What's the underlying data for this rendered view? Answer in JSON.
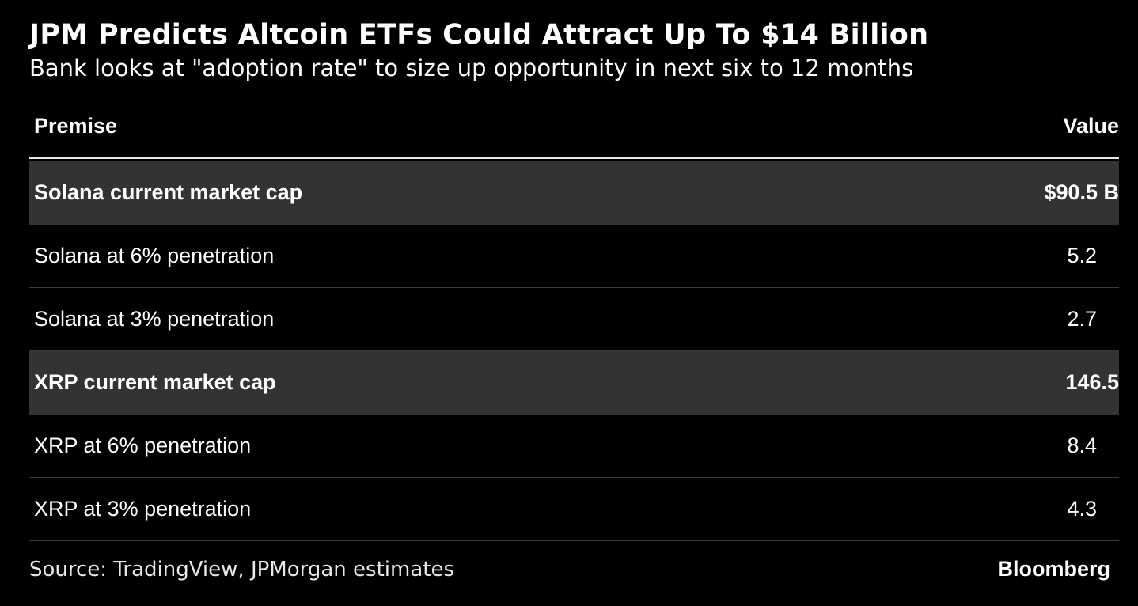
{
  "title": "JPM Predicts Altcoin ETFs Could Attract Up To $14 Billion",
  "subtitle": "Bank looks at \"adoption rate\" to size up opportunity in next six to 12 months",
  "chart_data": {
    "type": "table",
    "columns": [
      "Premise",
      "Value"
    ],
    "rows": [
      {
        "premise": "Solana current market cap",
        "value": "$90.5 B",
        "highlight": true
      },
      {
        "premise": "Solana at 6% penetration",
        "value": "5.2",
        "highlight": false
      },
      {
        "premise": "Solana at 3% penetration",
        "value": "2.7",
        "highlight": false
      },
      {
        "premise": "XRP current market cap",
        "value": "146.5",
        "highlight": true
      },
      {
        "premise": "XRP at 6% penetration",
        "value": "8.4",
        "highlight": false
      },
      {
        "premise": "XRP at 3% penetration",
        "value": "4.3",
        "highlight": false
      }
    ]
  },
  "footer": {
    "source": "Source: TradingView, JPMorgan estimates",
    "brand": "Bloomberg"
  },
  "colors": {
    "background": "#000000",
    "highlight_row": "#333333",
    "text": "#ffffff",
    "divider": "#3a3a3a"
  }
}
